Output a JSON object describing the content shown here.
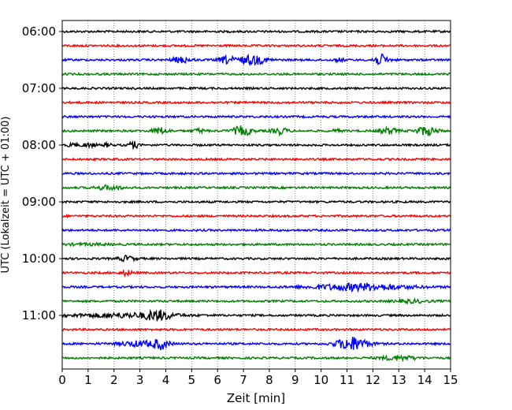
{
  "chart_data": {
    "type": "line",
    "title": "",
    "xlabel": "Zeit  [min]",
    "ylabel": "UTC (Lokalzeit = UTC + 01:00)",
    "xlim": [
      0,
      15
    ],
    "x_ticks": [
      "0",
      "1",
      "2",
      "3",
      "4",
      "5",
      "6",
      "7",
      "8",
      "9",
      "10",
      "11",
      "12",
      "13",
      "14",
      "15"
    ],
    "y_tick_labels": [
      "06:00",
      "07:00",
      "08:00",
      "09:00",
      "10:00",
      "11:00"
    ],
    "grid": "vertical dotted",
    "trace_start": "06:00",
    "trace_interval_min": 15,
    "colors": [
      "#000000",
      "#ff0000",
      "#0000ff",
      "#008000"
    ],
    "traces": [
      {
        "time": "06:00",
        "color": "#000000",
        "events": []
      },
      {
        "time": "06:15",
        "color": "#ff0000",
        "events": []
      },
      {
        "time": "06:30",
        "color": "#0000ff",
        "events": [
          [
            4.6,
            0.35,
            0.5
          ],
          [
            6.35,
            0.3,
            0.6
          ],
          [
            7.35,
            0.55,
            0.8
          ],
          [
            10.7,
            0.2,
            0.25
          ],
          [
            12.3,
            0.3,
            0.9
          ]
        ]
      },
      {
        "time": "06:45",
        "color": "#008000",
        "events": []
      },
      {
        "time": "07:00",
        "color": "#000000",
        "events": []
      },
      {
        "time": "07:15",
        "color": "#ff0000",
        "events": []
      },
      {
        "time": "07:30",
        "color": "#0000ff",
        "events": []
      },
      {
        "time": "07:45",
        "color": "#008000",
        "events": [
          [
            3.8,
            0.3,
            0.55
          ],
          [
            5.3,
            0.25,
            0.3
          ],
          [
            6.95,
            0.35,
            0.85
          ],
          [
            8.4,
            0.3,
            0.55
          ],
          [
            10.6,
            0.2,
            0.2
          ],
          [
            12.6,
            0.35,
            0.5
          ],
          [
            14.05,
            0.4,
            0.75
          ]
        ]
      },
      {
        "time": "08:00",
        "color": "#000000",
        "events": [
          [
            0.4,
            0.15,
            0.35
          ],
          [
            1.0,
            0.3,
            0.3
          ],
          [
            1.75,
            0.15,
            0.3
          ],
          [
            2.75,
            0.2,
            0.55
          ]
        ]
      },
      {
        "time": "08:15",
        "color": "#ff0000",
        "events": []
      },
      {
        "time": "08:30",
        "color": "#0000ff",
        "events": []
      },
      {
        "time": "08:45",
        "color": "#008000",
        "events": [
          [
            1.8,
            0.5,
            0.35
          ]
        ]
      },
      {
        "time": "09:00",
        "color": "#000000",
        "events": []
      },
      {
        "time": "09:15",
        "color": "#ff0000",
        "events": []
      },
      {
        "time": "09:30",
        "color": "#0000ff",
        "events": []
      },
      {
        "time": "09:45",
        "color": "#008000",
        "events": [
          [
            1.0,
            1.0,
            0.12
          ]
        ]
      },
      {
        "time": "10:00",
        "color": "#000000",
        "events": [
          [
            2.5,
            0.3,
            0.45
          ]
        ]
      },
      {
        "time": "10:15",
        "color": "#ff0000",
        "events": [
          [
            2.5,
            0.2,
            0.45
          ]
        ]
      },
      {
        "time": "10:30",
        "color": "#0000ff",
        "events": [
          [
            11.5,
            1.8,
            0.6
          ]
        ]
      },
      {
        "time": "10:45",
        "color": "#008000",
        "events": [
          [
            13.5,
            0.6,
            0.25
          ]
        ]
      },
      {
        "time": "11:00",
        "color": "#000000",
        "events": [
          [
            2.3,
            2.0,
            0.35
          ],
          [
            3.7,
            0.5,
            0.75
          ]
        ]
      },
      {
        "time": "11:15",
        "color": "#ff0000",
        "events": []
      },
      {
        "time": "11:30",
        "color": "#0000ff",
        "events": [
          [
            3.0,
            0.8,
            0.45
          ],
          [
            3.8,
            0.3,
            0.8
          ],
          [
            11.2,
            0.6,
            1.2
          ]
        ]
      },
      {
        "time": "11:45",
        "color": "#008000",
        "events": [
          [
            13.0,
            0.7,
            0.35
          ]
        ]
      }
    ]
  }
}
